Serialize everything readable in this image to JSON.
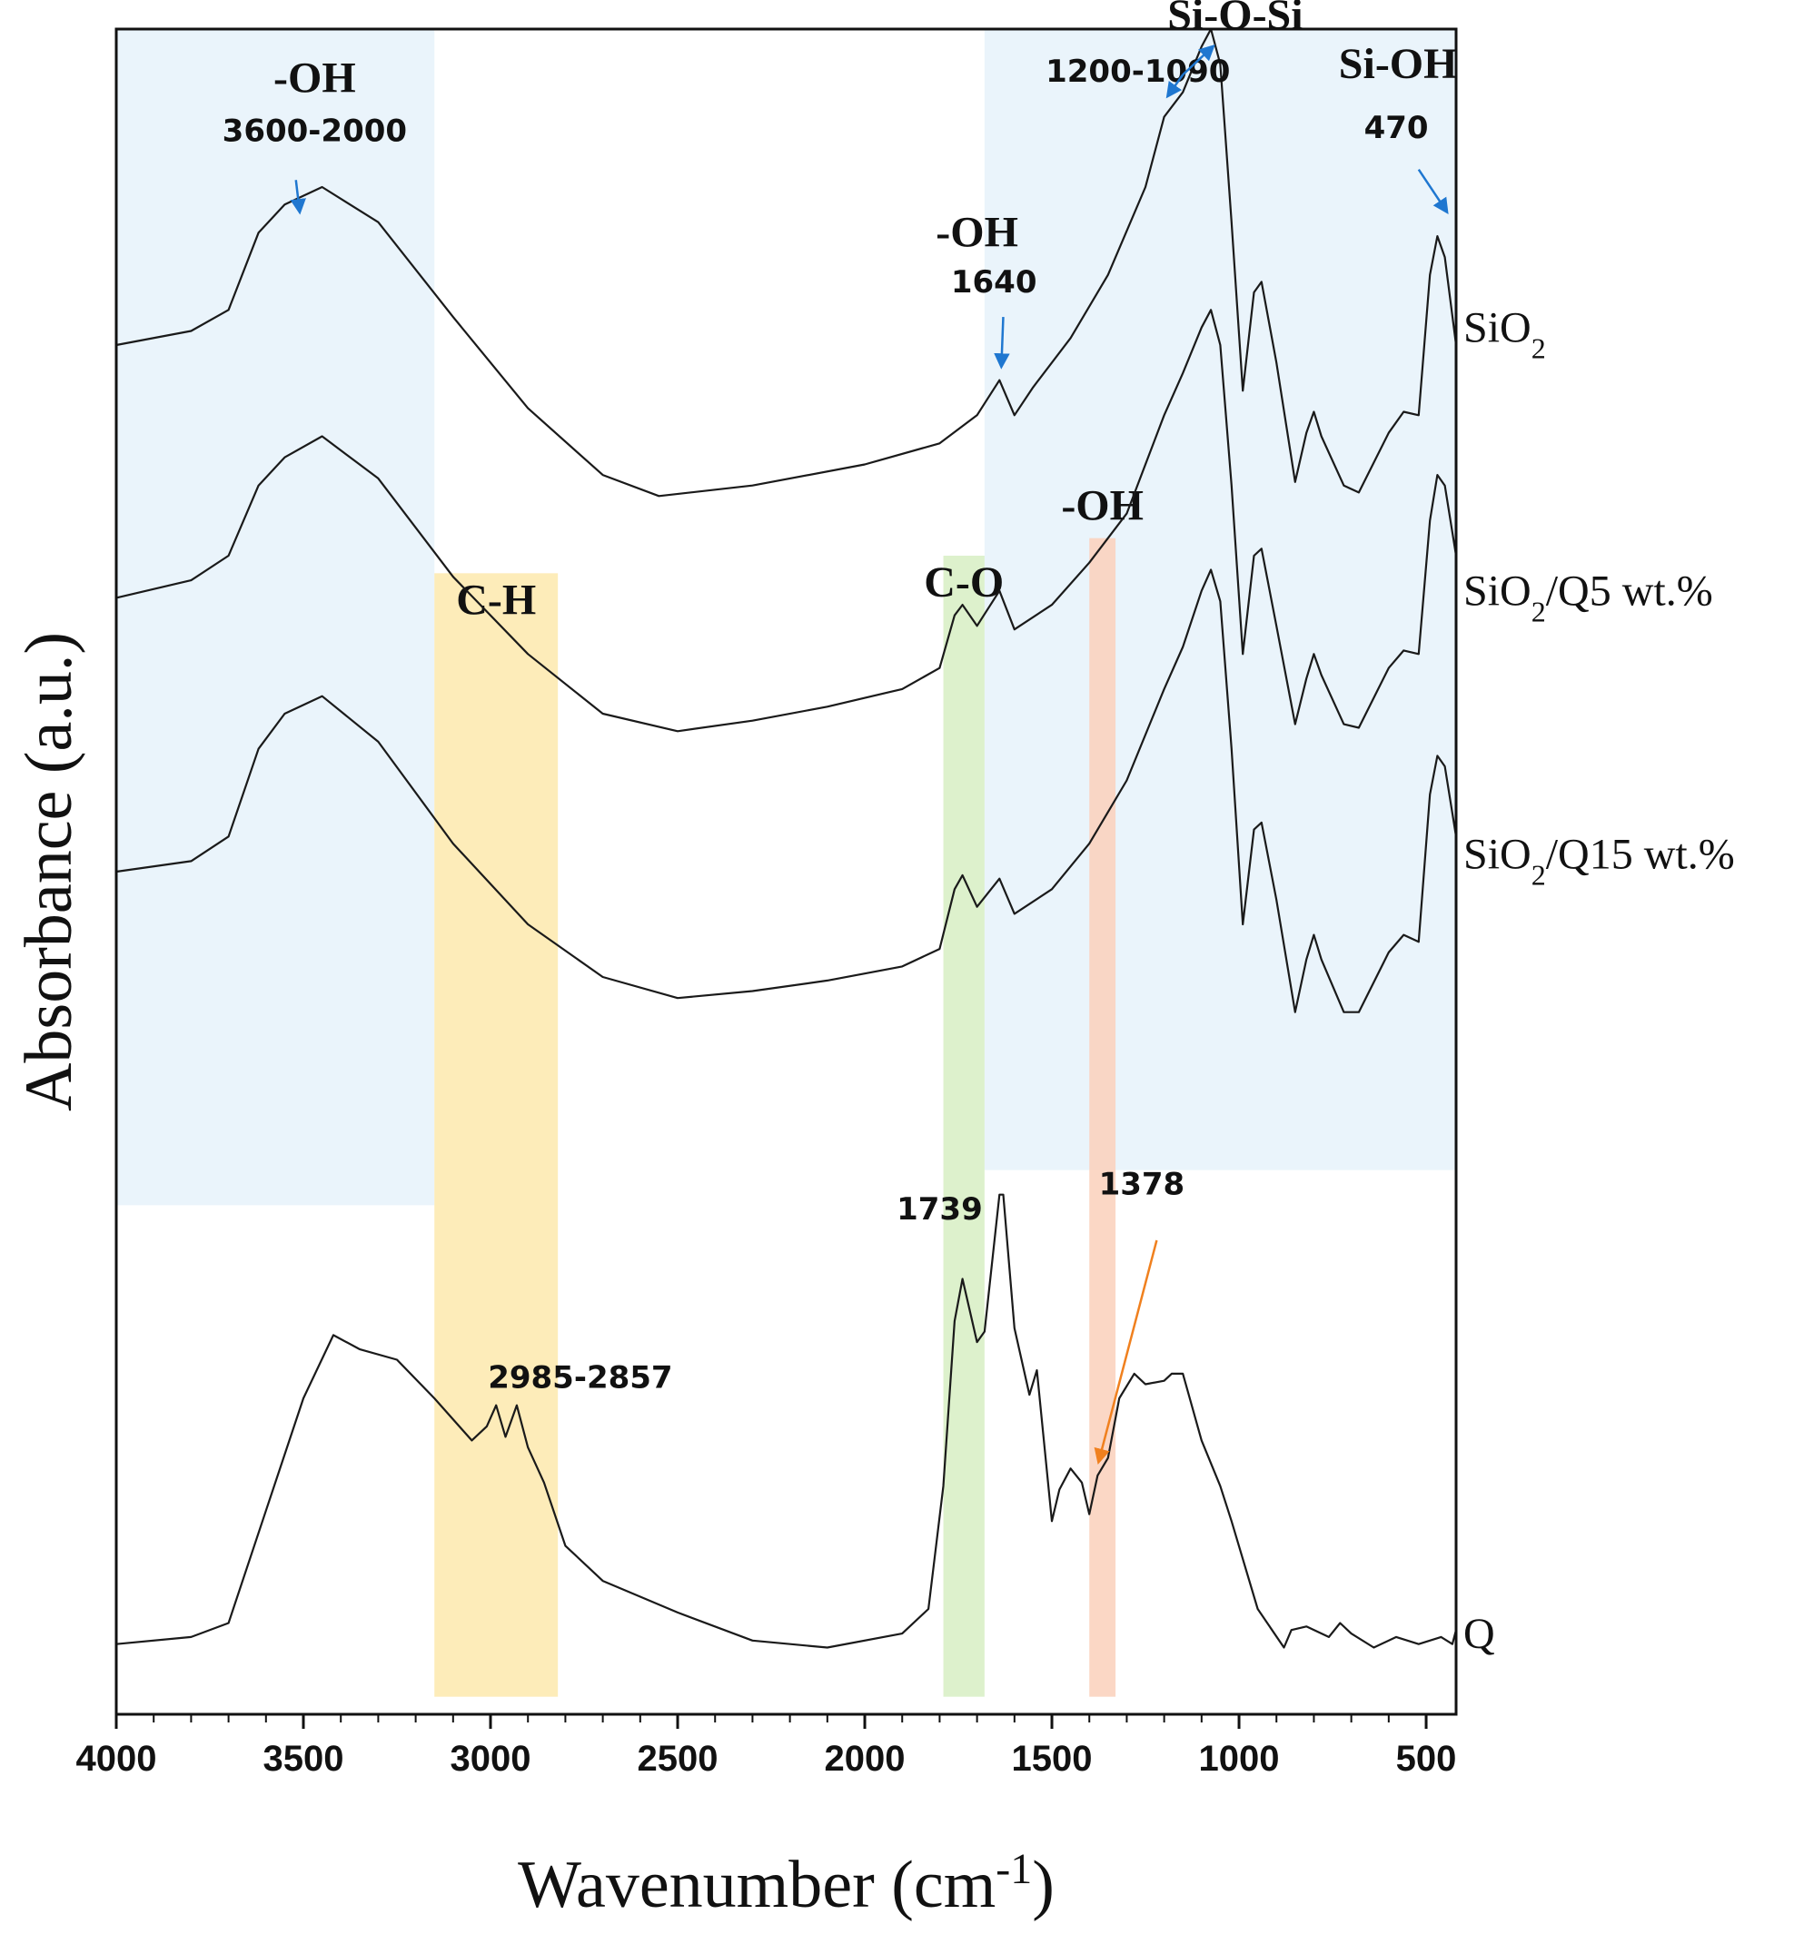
{
  "chart_data": {
    "type": "line",
    "xlabel": "Wavenumber (cm",
    "xlabel_sup": "-1",
    "xlabel_close": ")",
    "ylabel": "Absorbance (a.u.)",
    "xlim": [
      4000,
      420
    ],
    "ylim": [
      -0.2,
      4.6
    ],
    "x_ticks": [
      4000,
      3500,
      3000,
      2500,
      2000,
      1500,
      1000,
      500
    ],
    "colors": {
      "line": "#1a1a1a",
      "oh_region": "#eaf4fb",
      "ch_band": "#fdeab1",
      "co_band": "#d9efc6",
      "oh_band": "#fbd3bf",
      "blue_arrow": "#1f77d0",
      "orange_arrow": "#f0801e"
    },
    "regions": [
      {
        "name": "oh-broad-region",
        "from": 4000,
        "to": 3150,
        "y_from": 1.25,
        "y_to": 4.6
      },
      {
        "name": "si-o-region",
        "from": 1680,
        "to": 420,
        "y_from": 1.35,
        "y_to": 4.6
      }
    ],
    "bands": [
      {
        "name": "ch-band",
        "label": "C-H",
        "from": 3150,
        "to": 2820,
        "y_top": 3.05
      },
      {
        "name": "co-band",
        "label": "C-O",
        "from": 1790,
        "to": 1680,
        "y_top": 3.1
      },
      {
        "name": "oh-band",
        "label": "-OH",
        "from": 1400,
        "to": 1330,
        "y_top": 3.15
      }
    ],
    "series": [
      {
        "name": "SiO2",
        "label_main": "SiO",
        "label_sub": "2",
        "label_suffix": "",
        "label_y": 3.75,
        "points": [
          [
            4000,
            3.7
          ],
          [
            3800,
            3.74
          ],
          [
            3700,
            3.8
          ],
          [
            3620,
            4.02
          ],
          [
            3550,
            4.1
          ],
          [
            3450,
            4.15
          ],
          [
            3300,
            4.05
          ],
          [
            3100,
            3.78
          ],
          [
            2900,
            3.52
          ],
          [
            2700,
            3.33
          ],
          [
            2550,
            3.27
          ],
          [
            2300,
            3.3
          ],
          [
            2000,
            3.36
          ],
          [
            1800,
            3.42
          ],
          [
            1700,
            3.5
          ],
          [
            1640,
            3.6
          ],
          [
            1600,
            3.5
          ],
          [
            1550,
            3.58
          ],
          [
            1450,
            3.72
          ],
          [
            1350,
            3.9
          ],
          [
            1250,
            4.15
          ],
          [
            1200,
            4.35
          ],
          [
            1150,
            4.42
          ],
          [
            1100,
            4.55
          ],
          [
            1075,
            4.6
          ],
          [
            1050,
            4.5
          ],
          [
            1020,
            4.05
          ],
          [
            990,
            3.57
          ],
          [
            960,
            3.85
          ],
          [
            940,
            3.88
          ],
          [
            900,
            3.65
          ],
          [
            850,
            3.31
          ],
          [
            820,
            3.45
          ],
          [
            800,
            3.51
          ],
          [
            780,
            3.44
          ],
          [
            720,
            3.3
          ],
          [
            680,
            3.28
          ],
          [
            600,
            3.45
          ],
          [
            560,
            3.51
          ],
          [
            520,
            3.5
          ],
          [
            490,
            3.9
          ],
          [
            470,
            4.01
          ],
          [
            450,
            3.95
          ],
          [
            420,
            3.7
          ]
        ]
      },
      {
        "name": "SiO2/Q5",
        "label_main": "SiO",
        "label_sub": "2",
        "label_suffix": "/Q5 wt.%",
        "label_y": 3.0,
        "points": [
          [
            4000,
            2.98
          ],
          [
            3800,
            3.03
          ],
          [
            3700,
            3.1
          ],
          [
            3620,
            3.3
          ],
          [
            3550,
            3.38
          ],
          [
            3450,
            3.44
          ],
          [
            3300,
            3.32
          ],
          [
            3100,
            3.04
          ],
          [
            2900,
            2.82
          ],
          [
            2700,
            2.65
          ],
          [
            2500,
            2.6
          ],
          [
            2300,
            2.63
          ],
          [
            2100,
            2.67
          ],
          [
            1900,
            2.72
          ],
          [
            1800,
            2.78
          ],
          [
            1760,
            2.93
          ],
          [
            1739,
            2.96
          ],
          [
            1700,
            2.9
          ],
          [
            1640,
            3.0
          ],
          [
            1600,
            2.89
          ],
          [
            1500,
            2.96
          ],
          [
            1400,
            3.08
          ],
          [
            1300,
            3.22
          ],
          [
            1200,
            3.5
          ],
          [
            1150,
            3.62
          ],
          [
            1100,
            3.75
          ],
          [
            1075,
            3.8
          ],
          [
            1050,
            3.7
          ],
          [
            1020,
            3.3
          ],
          [
            990,
            2.82
          ],
          [
            960,
            3.1
          ],
          [
            940,
            3.12
          ],
          [
            900,
            2.9
          ],
          [
            850,
            2.62
          ],
          [
            820,
            2.75
          ],
          [
            800,
            2.82
          ],
          [
            780,
            2.76
          ],
          [
            720,
            2.62
          ],
          [
            680,
            2.61
          ],
          [
            600,
            2.78
          ],
          [
            560,
            2.83
          ],
          [
            520,
            2.82
          ],
          [
            490,
            3.2
          ],
          [
            470,
            3.33
          ],
          [
            450,
            3.3
          ],
          [
            420,
            3.1
          ]
        ]
      },
      {
        "name": "SiO2/Q15",
        "label_main": "SiO",
        "label_sub": "2",
        "label_suffix": "/Q15 wt.%",
        "label_y": 2.25,
        "points": [
          [
            4000,
            2.2
          ],
          [
            3800,
            2.23
          ],
          [
            3700,
            2.3
          ],
          [
            3620,
            2.55
          ],
          [
            3550,
            2.65
          ],
          [
            3450,
            2.7
          ],
          [
            3300,
            2.57
          ],
          [
            3100,
            2.28
          ],
          [
            2900,
            2.05
          ],
          [
            2700,
            1.9
          ],
          [
            2500,
            1.84
          ],
          [
            2300,
            1.86
          ],
          [
            2100,
            1.89
          ],
          [
            1900,
            1.93
          ],
          [
            1800,
            1.98
          ],
          [
            1760,
            2.15
          ],
          [
            1739,
            2.19
          ],
          [
            1700,
            2.1
          ],
          [
            1640,
            2.18
          ],
          [
            1600,
            2.08
          ],
          [
            1500,
            2.15
          ],
          [
            1400,
            2.28
          ],
          [
            1300,
            2.46
          ],
          [
            1200,
            2.72
          ],
          [
            1150,
            2.84
          ],
          [
            1100,
            3.0
          ],
          [
            1075,
            3.06
          ],
          [
            1050,
            2.97
          ],
          [
            1020,
            2.55
          ],
          [
            990,
            2.05
          ],
          [
            960,
            2.32
          ],
          [
            940,
            2.34
          ],
          [
            900,
            2.12
          ],
          [
            850,
            1.8
          ],
          [
            820,
            1.95
          ],
          [
            800,
            2.02
          ],
          [
            780,
            1.95
          ],
          [
            720,
            1.8
          ],
          [
            680,
            1.8
          ],
          [
            600,
            1.97
          ],
          [
            560,
            2.02
          ],
          [
            520,
            2.0
          ],
          [
            490,
            2.42
          ],
          [
            470,
            2.53
          ],
          [
            450,
            2.5
          ],
          [
            420,
            2.3
          ]
        ]
      },
      {
        "name": "Q",
        "label_main": "Q",
        "label_sub": "",
        "label_suffix": "",
        "label_y": 0.03,
        "points": [
          [
            4000,
            0.0
          ],
          [
            3800,
            0.02
          ],
          [
            3700,
            0.06
          ],
          [
            3600,
            0.38
          ],
          [
            3500,
            0.7
          ],
          [
            3420,
            0.88
          ],
          [
            3350,
            0.84
          ],
          [
            3250,
            0.81
          ],
          [
            3150,
            0.7
          ],
          [
            3050,
            0.58
          ],
          [
            3010,
            0.62
          ],
          [
            2985,
            0.68
          ],
          [
            2960,
            0.59
          ],
          [
            2930,
            0.68
          ],
          [
            2900,
            0.56
          ],
          [
            2857,
            0.46
          ],
          [
            2800,
            0.28
          ],
          [
            2700,
            0.18
          ],
          [
            2500,
            0.09
          ],
          [
            2300,
            0.01
          ],
          [
            2100,
            -0.01
          ],
          [
            1900,
            0.03
          ],
          [
            1830,
            0.1
          ],
          [
            1790,
            0.45
          ],
          [
            1760,
            0.92
          ],
          [
            1739,
            1.04
          ],
          [
            1700,
            0.86
          ],
          [
            1680,
            0.89
          ],
          [
            1640,
            1.28
          ],
          [
            1630,
            1.28
          ],
          [
            1600,
            0.9
          ],
          [
            1560,
            0.71
          ],
          [
            1540,
            0.78
          ],
          [
            1500,
            0.35
          ],
          [
            1480,
            0.44
          ],
          [
            1450,
            0.5
          ],
          [
            1420,
            0.46
          ],
          [
            1400,
            0.37
          ],
          [
            1378,
            0.48
          ],
          [
            1350,
            0.53
          ],
          [
            1320,
            0.7
          ],
          [
            1280,
            0.77
          ],
          [
            1250,
            0.74
          ],
          [
            1200,
            0.75
          ],
          [
            1180,
            0.77
          ],
          [
            1150,
            0.77
          ],
          [
            1100,
            0.58
          ],
          [
            1050,
            0.45
          ],
          [
            1020,
            0.35
          ],
          [
            950,
            0.1
          ],
          [
            880,
            -0.01
          ],
          [
            860,
            0.04
          ],
          [
            820,
            0.05
          ],
          [
            760,
            0.02
          ],
          [
            730,
            0.06
          ],
          [
            700,
            0.03
          ],
          [
            640,
            -0.01
          ],
          [
            580,
            0.02
          ],
          [
            520,
            0.0
          ],
          [
            460,
            0.02
          ],
          [
            430,
            0.0
          ],
          [
            420,
            0.04
          ]
        ]
      }
    ],
    "annotations": [
      {
        "name": "oh-broad-label",
        "text": "-OH",
        "style": "band-label",
        "x": 3470,
        "y": 4.42
      },
      {
        "name": "oh-broad-range",
        "text": "3600-2000",
        "style": "ann-num",
        "x": 3470,
        "y": 4.28
      },
      {
        "name": "si-o-si-label",
        "text": "Si-O-Si",
        "style": "band-label",
        "x": 1010,
        "y": 4.6
      },
      {
        "name": "si-o-si-range",
        "text": "1200-1090",
        "style": "ann-num",
        "x": 1270,
        "y": 4.45
      },
      {
        "name": "si-oh-label",
        "text": "Si-OH",
        "style": "band-label",
        "x": 575,
        "y": 4.46
      },
      {
        "name": "si-oh-value",
        "text": "470",
        "style": "ann-num",
        "x": 580,
        "y": 4.29
      },
      {
        "name": "oh-1640-label",
        "text": "-OH",
        "style": "band-label",
        "x": 1700,
        "y": 3.98
      },
      {
        "name": "oh-1640-value",
        "text": "1640",
        "style": "ann-num",
        "x": 1655,
        "y": 3.85
      },
      {
        "name": "ch-range",
        "text": "2985-2857",
        "style": "ann-num",
        "x": 2760,
        "y": 0.73
      },
      {
        "name": "co-value",
        "text": "1739",
        "style": "ann-num",
        "x": 1800,
        "y": 1.21
      },
      {
        "name": "oh-1378-value",
        "text": "1378",
        "style": "ann-num",
        "x": 1260,
        "y": 1.28
      }
    ],
    "arrows": [
      {
        "name": "oh-broad-arrow",
        "color": "blue_arrow",
        "from": [
          3520,
          4.17
        ],
        "to": [
          3510,
          4.08
        ]
      },
      {
        "name": "si-o-si-arrow-upper",
        "color": "blue_arrow",
        "from": [
          1150,
          4.47
        ],
        "to": [
          1070,
          4.55
        ]
      },
      {
        "name": "si-o-si-arrow-lower",
        "color": "blue_arrow",
        "from": [
          1150,
          4.47
        ],
        "to": [
          1190,
          4.41
        ]
      },
      {
        "name": "si-oh-arrow",
        "color": "blue_arrow",
        "from": [
          520,
          4.2
        ],
        "to": [
          445,
          4.08
        ]
      },
      {
        "name": "oh-1640-arrow",
        "color": "blue_arrow",
        "from": [
          1630,
          3.78
        ],
        "to": [
          1635,
          3.64
        ]
      },
      {
        "name": "oh-1378-arrow",
        "color": "orange_arrow",
        "from": [
          1220,
          1.15
        ],
        "to": [
          1375,
          0.52
        ]
      }
    ]
  }
}
